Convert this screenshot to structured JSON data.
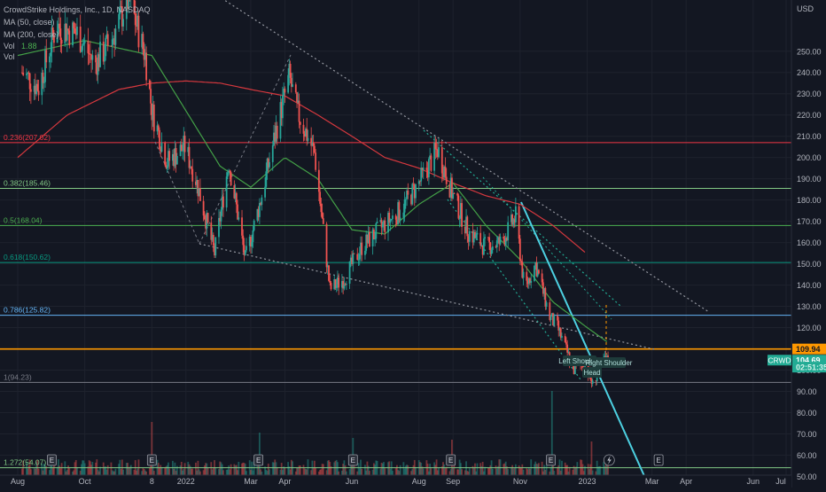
{
  "legend": {
    "title": "CrowdStrike Holdings, Inc., 1D, NASDAQ",
    "ma50": "MA (50, close)",
    "ma200": "MA (200, close)",
    "vol": "Vol",
    "vol_value": "1.88",
    "vol_extra": "Vol"
  },
  "chart_data": {
    "type": "candlestick",
    "symbol": "CRWD",
    "currency": "USD",
    "y_range": [
      46,
      272
    ],
    "y_ticks": [
      250,
      240,
      230,
      220,
      210,
      200,
      190,
      180,
      170,
      160,
      150,
      140,
      130,
      120,
      100,
      90,
      80,
      70,
      60,
      50
    ],
    "x_ticks": [
      "Aug",
      "Oct",
      "8",
      "2022",
      "Mar",
      "Apr",
      "Jun",
      "Aug",
      "Sep",
      "Nov",
      "2023",
      "Mar",
      "Apr",
      "Jun",
      "Jul"
    ],
    "x_tick_dates": [
      "2021-08-01",
      "2021-10-01",
      "2021-12-01",
      "2022-01-01",
      "2022-03-01",
      "2022-04-01",
      "2022-06-01",
      "2022-08-01",
      "2022-09-01",
      "2022-11-01",
      "2023-01-01",
      "2023-03-01",
      "2023-04-01",
      "2023-06-01",
      "2023-07-01"
    ],
    "fib_levels": [
      {
        "label": "0.236(207.02)",
        "value": 207.02,
        "color": "#f23645"
      },
      {
        "label": "0.382(185.46)",
        "value": 185.46,
        "color": "#81c784"
      },
      {
        "label": "0.5(168.04)",
        "value": 168.04,
        "color": "#4caf50"
      },
      {
        "label": "0.618(150.62)",
        "value": 150.62,
        "color": "#089981"
      },
      {
        "label": "0.786(125.82)",
        "value": 125.82,
        "color": "#64b5f6"
      },
      {
        "label": "1(94.23)",
        "value": 94.23,
        "color": "#787b86"
      },
      {
        "label": "1.272(54.07)",
        "value": 54.07,
        "color": "#81c784"
      }
    ],
    "resistance_line": {
      "value": 109.94,
      "color": "#ff9800"
    },
    "price_tags": [
      {
        "text": "109.94",
        "value": 109.94,
        "bg": "#ff9800",
        "fg": "#131722"
      },
      {
        "text": "104.69",
        "value": 104.69,
        "bg": "#22ab94",
        "fg": "#ffffff"
      },
      {
        "text": "02:51:35",
        "value": 101.4,
        "bg": "#22ab94",
        "fg": "#d1f2ea"
      }
    ],
    "symbol_tag": {
      "text": "CRWD",
      "value": 104.69
    },
    "pattern_labels": [
      "Left Shoulder",
      "Head",
      "Right Shoulder"
    ],
    "price_anchors": [
      [
        "2021-08-05",
        240
      ],
      [
        "2021-08-20",
        233
      ],
      [
        "2021-09-05",
        262
      ],
      [
        "2021-09-25",
        258
      ],
      [
        "2021-10-10",
        244
      ],
      [
        "2021-10-25",
        255
      ],
      [
        "2021-11-10",
        275
      ],
      [
        "2021-11-25",
        248
      ],
      [
        "2021-12-01",
        222
      ],
      [
        "2021-12-15",
        198
      ],
      [
        "2021-12-31",
        205
      ],
      [
        "2022-01-10",
        190
      ],
      [
        "2022-01-27",
        155
      ],
      [
        "2022-02-09",
        198
      ],
      [
        "2022-02-24",
        152
      ],
      [
        "2022-03-10",
        180
      ],
      [
        "2022-03-25",
        215
      ],
      [
        "2022-04-05",
        238
      ],
      [
        "2022-04-12",
        222
      ],
      [
        "2022-04-28",
        202
      ],
      [
        "2022-05-12",
        138
      ],
      [
        "2022-05-25",
        143
      ],
      [
        "2022-06-10",
        158
      ],
      [
        "2022-06-30",
        168
      ],
      [
        "2022-07-15",
        175
      ],
      [
        "2022-08-01",
        188
      ],
      [
        "2022-08-18",
        204
      ],
      [
        "2022-09-01",
        182
      ],
      [
        "2022-09-15",
        165
      ],
      [
        "2022-09-30",
        158
      ],
      [
        "2022-10-15",
        160
      ],
      [
        "2022-10-28",
        172
      ],
      [
        "2022-11-05",
        138
      ],
      [
        "2022-11-15",
        150
      ],
      [
        "2022-11-28",
        125
      ],
      [
        "2022-12-05",
        120
      ],
      [
        "2022-12-20",
        100
      ],
      [
        "2022-12-30",
        103
      ],
      [
        "2023-01-06",
        93
      ],
      [
        "2023-01-14",
        104
      ],
      [
        "2023-01-20",
        104.69
      ]
    ],
    "ma50_anchors": [
      [
        "2021-08-01",
        248
      ],
      [
        "2021-10-01",
        255
      ],
      [
        "2021-12-01",
        248
      ],
      [
        "2022-01-01",
        222
      ],
      [
        "2022-02-01",
        196
      ],
      [
        "2022-03-01",
        186
      ],
      [
        "2022-04-01",
        200
      ],
      [
        "2022-05-01",
        190
      ],
      [
        "2022-06-01",
        166
      ],
      [
        "2022-07-01",
        164
      ],
      [
        "2022-08-01",
        178
      ],
      [
        "2022-09-01",
        188
      ],
      [
        "2022-10-01",
        168
      ],
      [
        "2022-11-01",
        152
      ],
      [
        "2022-12-01",
        132
      ],
      [
        "2023-01-01",
        120
      ],
      [
        "2023-01-20",
        113
      ]
    ],
    "ma200_anchors": [
      [
        "2021-08-01",
        200
      ],
      [
        "2021-09-15",
        220
      ],
      [
        "2021-11-01",
        232
      ],
      [
        "2021-12-01",
        235
      ],
      [
        "2022-01-01",
        236
      ],
      [
        "2022-02-01",
        235
      ],
      [
        "2022-03-01",
        232
      ],
      [
        "2022-04-01",
        229
      ],
      [
        "2022-05-01",
        220
      ],
      [
        "2022-06-01",
        210
      ],
      [
        "2022-07-01",
        200
      ],
      [
        "2022-08-01",
        195
      ],
      [
        "2022-09-01",
        188
      ],
      [
        "2022-10-01",
        182
      ],
      [
        "2022-11-01",
        178
      ],
      [
        "2022-12-01",
        168
      ],
      [
        "2022-12-31",
        155
      ]
    ]
  }
}
